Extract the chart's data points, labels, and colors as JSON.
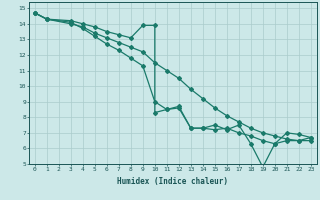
{
  "xlabel": "Humidex (Indice chaleur)",
  "bg_color": "#cce8e8",
  "grid_color": "#aacccc",
  "line_color": "#1a7a6a",
  "xlim": [
    -0.5,
    23.5
  ],
  "ylim": [
    5,
    15.4
  ],
  "xticks": [
    0,
    1,
    2,
    3,
    4,
    5,
    6,
    7,
    8,
    9,
    10,
    11,
    12,
    13,
    14,
    15,
    16,
    17,
    18,
    19,
    20,
    21,
    22,
    23
  ],
  "yticks": [
    5,
    6,
    7,
    8,
    9,
    10,
    11,
    12,
    13,
    14,
    15
  ],
  "line1_x": [
    0,
    1,
    3,
    4,
    5,
    6,
    7,
    8,
    9,
    10,
    11,
    12,
    13,
    14,
    15,
    16,
    17,
    18,
    19,
    20,
    21,
    22,
    23
  ],
  "line1_y": [
    14.7,
    14.3,
    14.0,
    13.8,
    13.4,
    13.1,
    12.8,
    12.5,
    12.2,
    11.5,
    11.0,
    10.5,
    9.8,
    9.2,
    8.6,
    8.1,
    7.7,
    7.3,
    7.0,
    6.8,
    6.6,
    6.5,
    6.5
  ],
  "line2_x": [
    0,
    1,
    3,
    4,
    5,
    6,
    7,
    8,
    9,
    10,
    10,
    11,
    12,
    13,
    14,
    15,
    16,
    17,
    18,
    19,
    20,
    21,
    22,
    23
  ],
  "line2_y": [
    14.7,
    14.3,
    14.2,
    14.0,
    13.8,
    13.5,
    13.3,
    13.1,
    13.9,
    13.9,
    8.3,
    8.5,
    8.7,
    7.3,
    7.3,
    7.5,
    7.2,
    7.5,
    6.3,
    4.8,
    6.3,
    7.0,
    6.9,
    6.7
  ],
  "line3_x": [
    0,
    1,
    3,
    4,
    5,
    6,
    7,
    8,
    9,
    10,
    11,
    12,
    13,
    14,
    15,
    16,
    17,
    18,
    19,
    20,
    21,
    22,
    23
  ],
  "line3_y": [
    14.7,
    14.3,
    14.1,
    13.7,
    13.2,
    12.7,
    12.3,
    11.8,
    11.3,
    9.0,
    8.5,
    8.6,
    7.3,
    7.3,
    7.2,
    7.3,
    7.0,
    6.8,
    6.5,
    6.3,
    6.5,
    6.5,
    6.7
  ]
}
